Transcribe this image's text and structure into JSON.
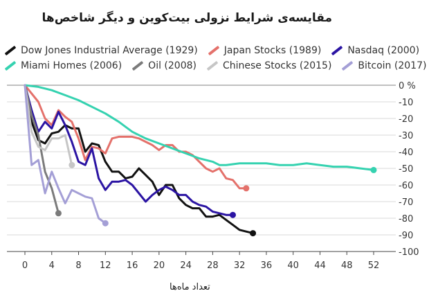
{
  "chart_data": {
    "type": "line",
    "title": "مقایسه‌ی شرایط نزولی بیت‌کوین و دیگر شاخص‌ها",
    "xlabel": "تعداد ماه‌ها",
    "ylabel": "",
    "xlim": [
      0,
      52
    ],
    "ylim": [
      -100,
      0
    ],
    "x_ticks": [
      0,
      4,
      8,
      12,
      16,
      20,
      24,
      28,
      32,
      36,
      40,
      44,
      48,
      52
    ],
    "y_ticks": [
      {
        "v": 0,
        "label": "0 %"
      },
      {
        "v": -10,
        "label": "-10"
      },
      {
        "v": -20,
        "label": "-20"
      },
      {
        "v": -30,
        "label": "-30"
      },
      {
        "v": -40,
        "label": "-40"
      },
      {
        "v": -50,
        "label": "-50"
      },
      {
        "v": -60,
        "label": "-60"
      },
      {
        "v": -70,
        "label": "-70"
      },
      {
        "v": -80,
        "label": "-80"
      },
      {
        "v": -90,
        "label": "-90"
      },
      {
        "v": -100,
        "label": "-100"
      }
    ],
    "series": [
      {
        "name": "Dow Jones Industrial Average (1929)",
        "color": "#111111",
        "x": [
          0,
          1,
          2,
          3,
          4,
          5,
          6,
          7,
          8,
          9,
          10,
          11,
          12,
          13,
          14,
          15,
          16,
          17,
          18,
          19,
          20,
          21,
          22,
          23,
          24,
          25,
          26,
          27,
          28,
          29,
          30,
          31,
          32,
          33,
          34
        ],
        "y": [
          0,
          -22,
          -33,
          -35,
          -29,
          -28,
          -24,
          -26,
          -26,
          -40,
          -35,
          -36,
          -46,
          -52,
          -52,
          -56,
          -55,
          -50,
          -54,
          -58,
          -66,
          -60,
          -60,
          -68,
          -72,
          -74,
          -74,
          -79,
          -79,
          -78,
          -81,
          -84,
          -87,
          -88,
          -89
        ]
      },
      {
        "name": "Japan Stocks (1989)",
        "color": "#e4716b",
        "x": [
          0,
          1,
          2,
          3,
          4,
          5,
          6,
          7,
          8,
          9,
          10,
          11,
          12,
          13,
          14,
          15,
          16,
          17,
          18,
          19,
          20,
          21,
          22,
          23,
          24,
          25,
          26,
          27,
          28,
          29,
          30,
          31,
          32,
          33
        ],
        "y": [
          0,
          -5,
          -10,
          -20,
          -24,
          -15,
          -19,
          -22,
          -32,
          -45,
          -37,
          -38,
          -41,
          -32,
          -31,
          -31,
          -31,
          -32,
          -34,
          -36,
          -39,
          -36,
          -36,
          -40,
          -40,
          -42,
          -46,
          -50,
          -52,
          -50,
          -56,
          -57,
          -62,
          -62
        ]
      },
      {
        "name": "Nasdaq (2000)",
        "color": "#2b14a3",
        "x": [
          0,
          1,
          2,
          3,
          4,
          5,
          6,
          7,
          8,
          9,
          10,
          11,
          12,
          13,
          14,
          15,
          16,
          17,
          18,
          19,
          20,
          21,
          22,
          23,
          24,
          25,
          26,
          27,
          28,
          29,
          30,
          31
        ],
        "y": [
          0,
          -15,
          -28,
          -22,
          -26,
          -16,
          -24,
          -34,
          -46,
          -48,
          -38,
          -56,
          -63,
          -58,
          -58,
          -57,
          -60,
          -65,
          -70,
          -66,
          -63,
          -61,
          -63,
          -66,
          -66,
          -70,
          -72,
          -73,
          -76,
          -77,
          -78,
          -78
        ]
      },
      {
        "name": "Miami Homes (2006)",
        "color": "#35d2b0",
        "x": [
          0,
          2,
          4,
          6,
          8,
          10,
          12,
          14,
          16,
          18,
          20,
          22,
          24,
          26,
          28,
          29,
          30,
          32,
          34,
          36,
          38,
          40,
          42,
          44,
          46,
          48,
          50,
          52
        ],
        "y": [
          0,
          -1,
          -3,
          -6,
          -9,
          -13,
          -17,
          -22,
          -28,
          -32,
          -35,
          -38,
          -41,
          -44,
          -46,
          -48,
          -48,
          -47,
          -47,
          -47,
          -48,
          -48,
          -47,
          -48,
          -49,
          -49,
          -50,
          -51
        ]
      },
      {
        "name": "Oil (2008)",
        "color": "#7b7b7b",
        "x": [
          0,
          1,
          2,
          3,
          4,
          5
        ],
        "y": [
          0,
          -18,
          -30,
          -52,
          -62,
          -77
        ]
      },
      {
        "name": "Chinese Stocks (2015)",
        "color": "#c6c6c6",
        "x": [
          0,
          1,
          2,
          3,
          4,
          5,
          6,
          7
        ],
        "y": [
          0,
          -28,
          -37,
          -39,
          -32,
          -32,
          -30,
          -48
        ]
      },
      {
        "name": "Bitcoin (2017)",
        "color": "#a49fd6",
        "x": [
          0,
          1,
          2,
          3,
          4,
          5,
          6,
          7,
          8,
          9,
          10,
          11,
          12
        ],
        "y": [
          0,
          -48,
          -45,
          -65,
          -52,
          -62,
          -71,
          -63,
          -65,
          -67,
          -68,
          -80,
          -83
        ]
      }
    ],
    "legend_rows": [
      [
        0,
        1,
        2
      ],
      [
        3,
        4,
        5,
        6
      ]
    ]
  }
}
